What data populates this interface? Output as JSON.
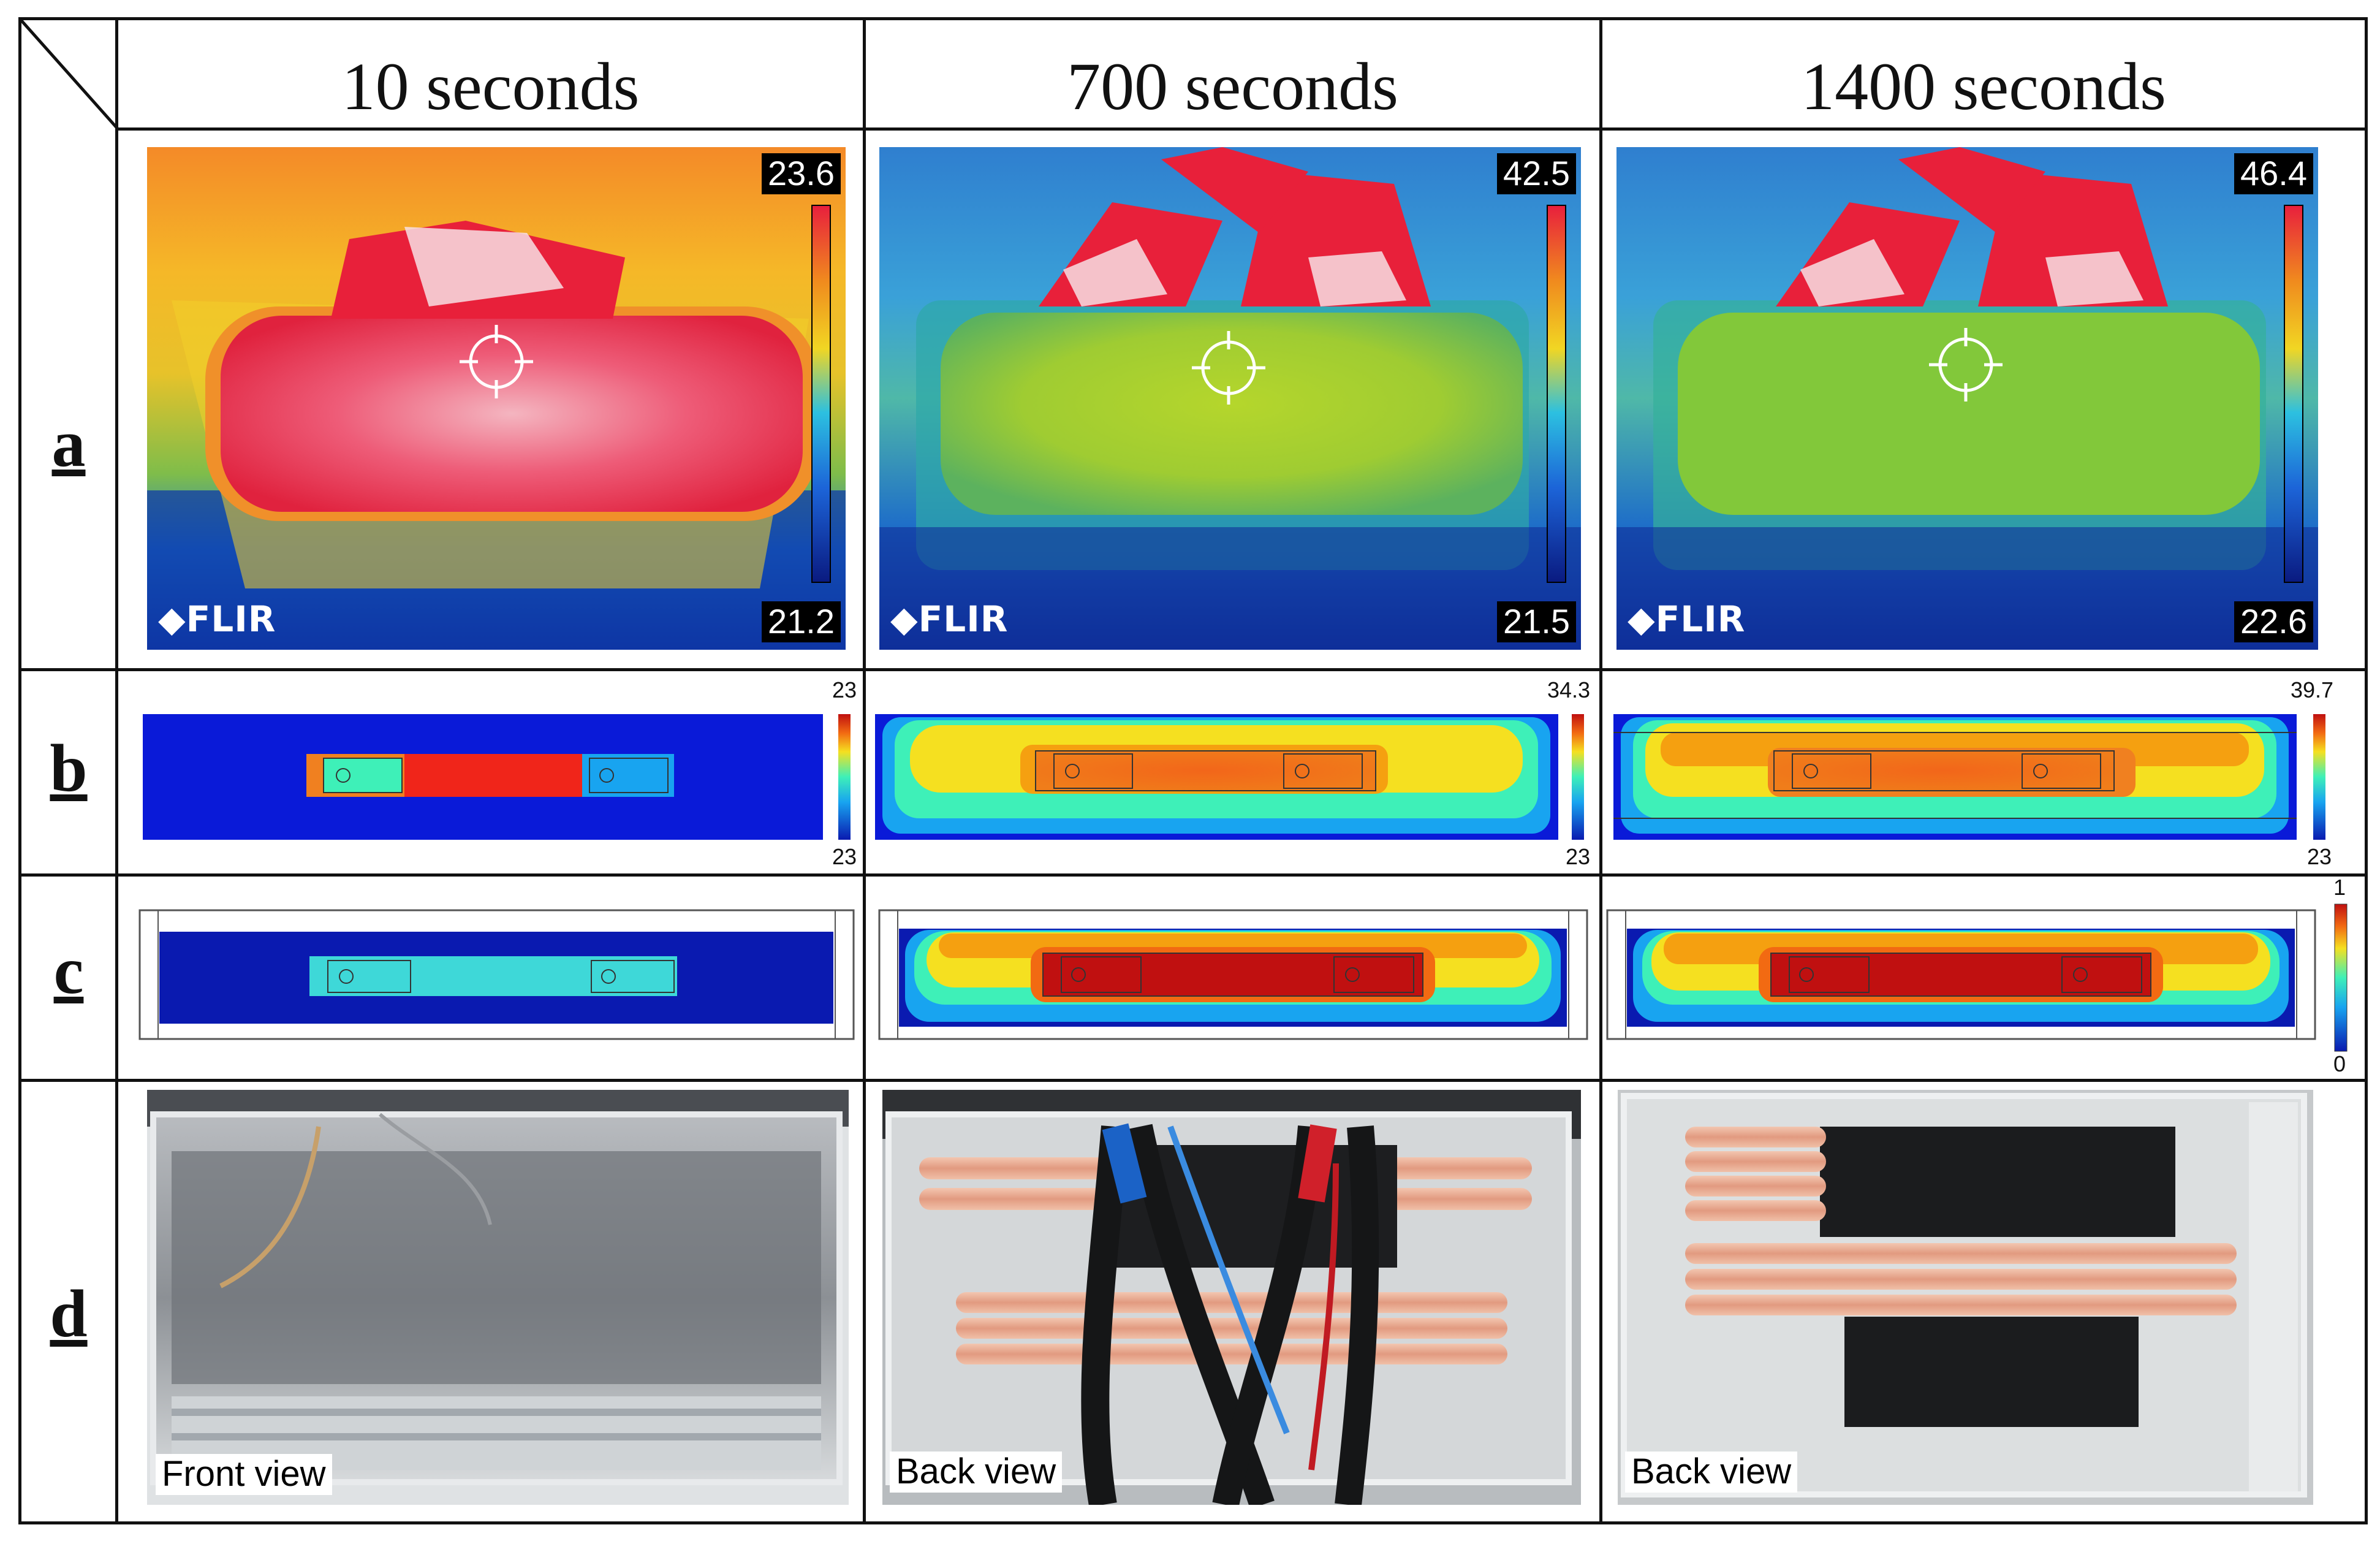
{
  "columns": [
    "10 seconds",
    "700 seconds",
    "1400 seconds"
  ],
  "rows": [
    "a",
    "b",
    "c",
    "d"
  ],
  "row_a": [
    {
      "max": "23.6",
      "min": "21.2",
      "logo": "FLIR"
    },
    {
      "max": "42.5",
      "min": "21.5",
      "logo": "FLIR"
    },
    {
      "max": "46.4",
      "min": "22.6",
      "logo": "FLIR"
    }
  ],
  "row_b": [
    {
      "max": "23",
      "min": "23"
    },
    {
      "max": "34.3",
      "min": "23"
    },
    {
      "max": "39.7",
      "min": "23"
    }
  ],
  "row_c": {
    "max": "1",
    "min": "0"
  },
  "row_d": [
    "Front view",
    "Back view",
    "Back view"
  ],
  "colors": {
    "hot": "#e8203a",
    "warm": "#f5d020",
    "mid": "#9ad12c",
    "cool": "#27a8e6",
    "cold": "#0b2fa8"
  }
}
